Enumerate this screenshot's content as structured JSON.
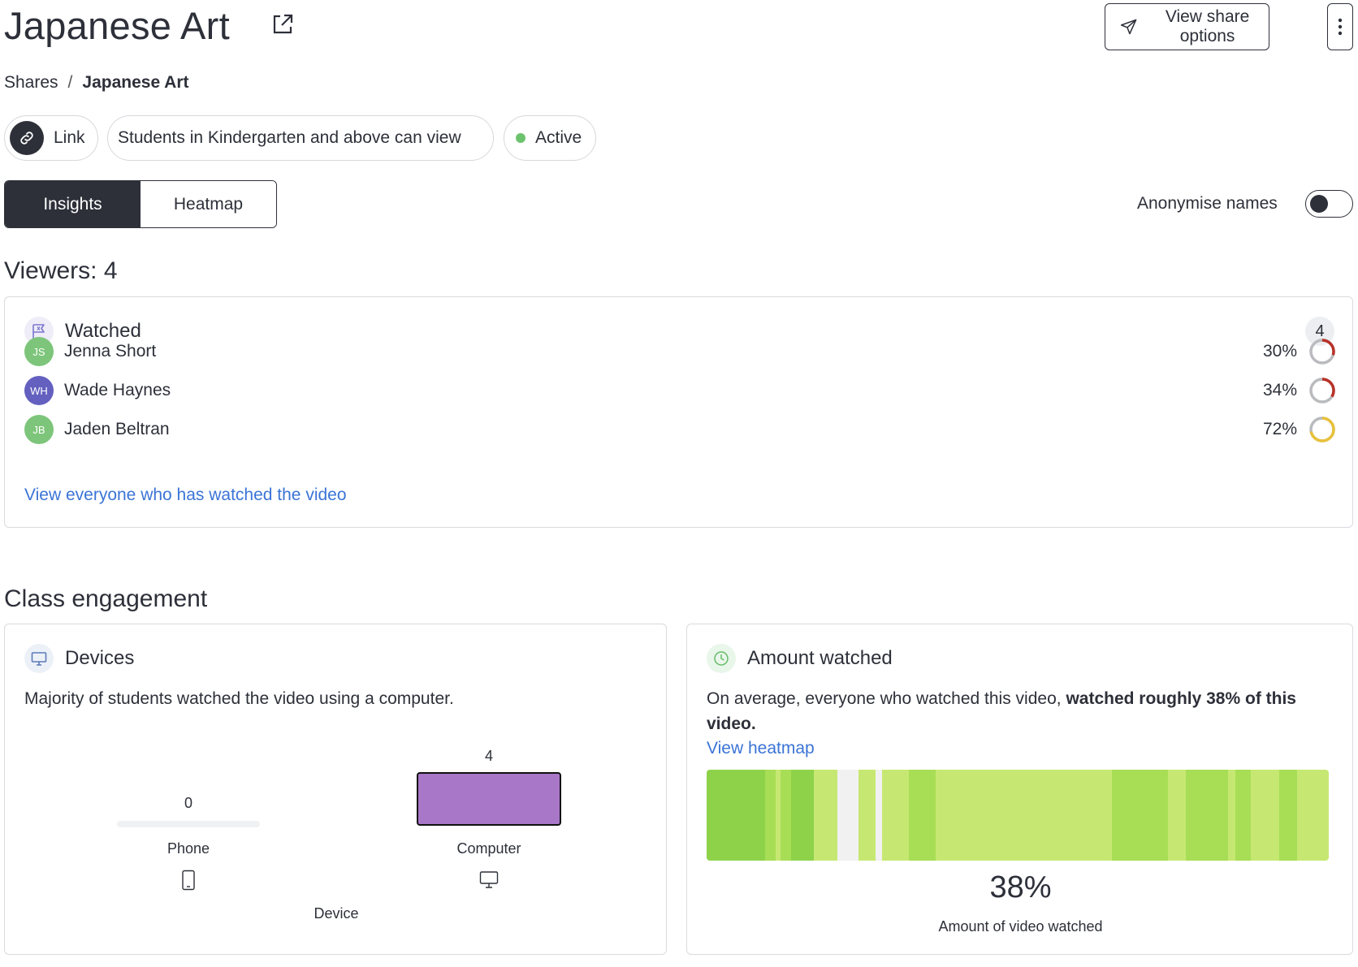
{
  "header": {
    "title": "Japanese Art",
    "share_button": "View share options"
  },
  "breadcrumb": {
    "root": "Shares",
    "separator": "/",
    "current": "Japanese Art"
  },
  "chips": {
    "link": "Link",
    "audience": "Students in Kindergarten and above can view",
    "status": "Active"
  },
  "tabs": {
    "insights": "Insights",
    "heatmap": "Heatmap"
  },
  "anonymise": {
    "label": "Anonymise names",
    "enabled": false
  },
  "viewers": {
    "title": "Viewers: 4"
  },
  "watched": {
    "title": "Watched",
    "count": "4",
    "rows": [
      {
        "initials": "JS",
        "name": "Jenna Short",
        "percent": "30%",
        "value": 0.3,
        "avatar_color": "#7dc57a",
        "ring_color": "#b83228"
      },
      {
        "initials": "WH",
        "name": "Wade Haynes",
        "percent": "34%",
        "value": 0.34,
        "avatar_color": "#6360c0",
        "ring_color": "#b83228"
      },
      {
        "initials": "JB",
        "name": "Jaden Beltran",
        "percent": "72%",
        "value": 0.72,
        "avatar_color": "#7dc57a",
        "ring_color": "#e8c13a"
      }
    ],
    "view_all_link": "View everyone who has watched the video"
  },
  "class_engagement": {
    "title": "Class engagement"
  },
  "devices": {
    "title": "Devices",
    "description": "Majority of students watched the video using a computer.",
    "chart_data": {
      "type": "bar",
      "categories": [
        "Phone",
        "Computer"
      ],
      "values": [
        0,
        4
      ],
      "xlabel": "Device",
      "ylabel": "",
      "bar_color": "#a877c8",
      "category_icons": [
        "phone-icon",
        "computer-icon"
      ]
    }
  },
  "amount_watched": {
    "title": "Amount watched",
    "description_plain": "On average, everyone who watched this video, ",
    "description_bold": "watched roughly 38% of this video.",
    "heatmap_link": "View heatmap",
    "percent": "38%",
    "caption": "Amount of video watched",
    "colors": {
      "high": "#8ed24a",
      "mid": "#a8de56",
      "low": "#c6e872",
      "none": "#f1f1f1"
    }
  }
}
